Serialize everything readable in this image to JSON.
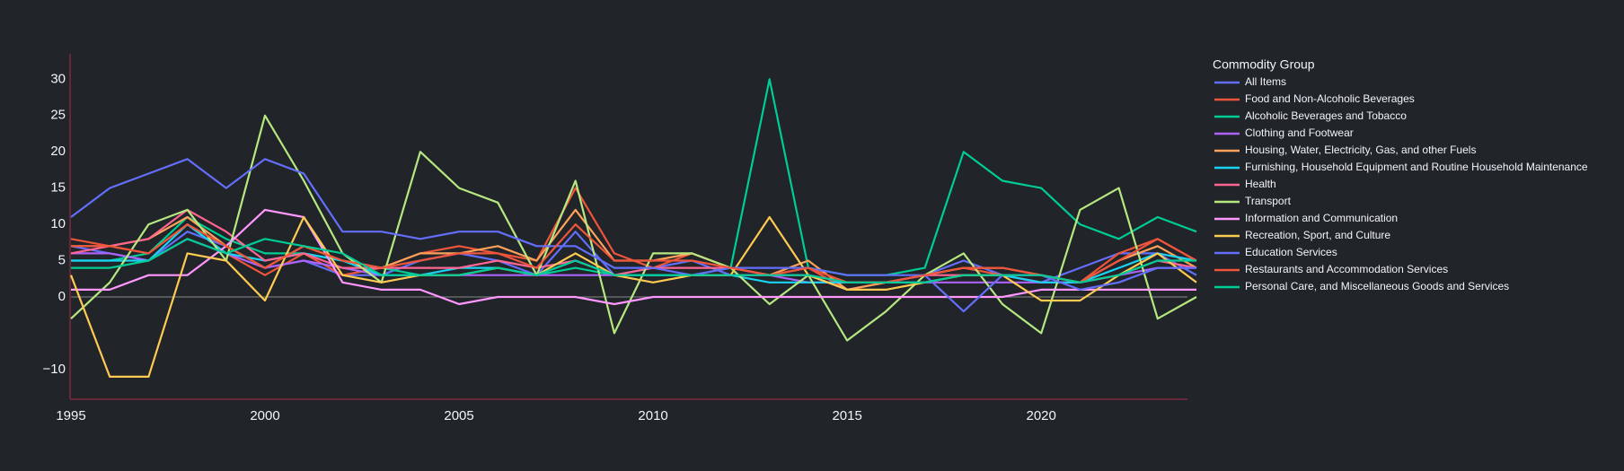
{
  "chart_data": {
    "type": "line",
    "legend_title": "Commodity Group",
    "x": [
      1995,
      1996,
      1997,
      1998,
      1999,
      2000,
      2001,
      2002,
      2003,
      2004,
      2005,
      2006,
      2007,
      2008,
      2009,
      2010,
      2011,
      2012,
      2013,
      2014,
      2015,
      2016,
      2017,
      2018,
      2019,
      2020,
      2021,
      2022,
      2023,
      2024
    ],
    "xlim": [
      1995,
      2024
    ],
    "xticks": [
      1995,
      2000,
      2005,
      2010,
      2015,
      2020
    ],
    "ylim": [
      -14.1,
      33.5
    ],
    "yticks": [
      {
        "value": -10,
        "label": "−10"
      },
      0,
      5,
      10,
      15,
      20,
      25,
      30
    ],
    "zero_line": true,
    "grid": false,
    "legend": "right",
    "series": [
      {
        "name": "All Items",
        "color": "#636efa",
        "values": [
          7,
          6,
          5,
          9,
          7,
          4,
          5,
          3,
          3,
          5,
          6,
          5,
          3,
          9,
          3,
          4,
          5,
          3,
          3,
          3,
          1,
          2,
          3,
          5,
          3,
          2,
          4,
          6,
          6,
          3
        ]
      },
      {
        "name": "Food and Non-Alcoholic Beverages",
        "color": "#EF553B",
        "values": [
          8,
          7,
          6,
          10,
          6,
          3,
          6,
          3,
          4,
          6,
          7,
          6,
          5,
          15,
          6,
          4,
          6,
          4,
          3,
          4,
          1,
          2,
          3,
          4,
          3,
          2,
          2,
          6,
          8,
          5
        ]
      },
      {
        "name": "Alcoholic Beverages and Tobacco",
        "color": "#00cc96",
        "values": [
          5,
          5,
          6,
          11,
          8,
          6,
          6,
          5,
          4,
          3,
          3,
          4,
          3,
          4,
          3,
          3,
          3,
          4,
          30,
          4,
          3,
          3,
          4,
          20,
          16,
          15,
          10,
          8,
          11,
          9
        ]
      },
      {
        "name": "Clothing and Footwear",
        "color": "#ab63fa",
        "values": [
          6,
          6,
          5,
          8,
          6,
          4,
          5,
          4,
          3,
          3,
          3,
          3,
          3,
          3,
          3,
          3,
          3,
          3,
          3,
          2,
          2,
          2,
          2,
          2,
          2,
          2,
          2,
          3,
          4,
          4
        ]
      },
      {
        "name": "Housing, Water, Electricity, Gas, and other Fuels",
        "color": "#FFA15A",
        "values": [
          7,
          7,
          8,
          11,
          7,
          4,
          7,
          5,
          4,
          6,
          6,
          7,
          5,
          12,
          5,
          5,
          6,
          4,
          3,
          5,
          1,
          2,
          3,
          4,
          4,
          3,
          2,
          5,
          7,
          4
        ]
      },
      {
        "name": "Furnishing, Household Equipment and Routine Household Maintenance",
        "color": "#19d3f3",
        "values": [
          5,
          5,
          5,
          10,
          6,
          5,
          6,
          5,
          3,
          3,
          4,
          4,
          3,
          5,
          3,
          3,
          3,
          3,
          2,
          2,
          2,
          2,
          2,
          3,
          3,
          2,
          2,
          4,
          6,
          5
        ]
      },
      {
        "name": "Health",
        "color": "#FF6692",
        "values": [
          6,
          7,
          8,
          12,
          9,
          5,
          6,
          4,
          4,
          4,
          4,
          5,
          4,
          5,
          3,
          4,
          4,
          4,
          3,
          3,
          2,
          2,
          3,
          3,
          3,
          3,
          2,
          3,
          5,
          4
        ]
      },
      {
        "name": "Transport",
        "color": "#B6E880",
        "values": [
          -3,
          2,
          10,
          12,
          5,
          25,
          16,
          6,
          2,
          20,
          15,
          13,
          3,
          16,
          -5,
          6,
          6,
          4,
          -1,
          3,
          -6,
          -2,
          3,
          6,
          -1,
          -5,
          12,
          15,
          -3,
          0
        ]
      },
      {
        "name": "Information and Communication",
        "color": "#FF97FF",
        "values": [
          1,
          1,
          3,
          3,
          7,
          12,
          11,
          2,
          1,
          1,
          -1,
          0,
          0,
          0,
          -1,
          0,
          0,
          0,
          0,
          0,
          0,
          0,
          0,
          0,
          0,
          1,
          1,
          1,
          1,
          1
        ]
      },
      {
        "name": "Recreation, Sport, and Culture",
        "color": "#FECB52",
        "values": [
          3,
          -11,
          -11,
          6,
          5,
          -0.5,
          11,
          3,
          2,
          3,
          3,
          4,
          3,
          6,
          3,
          2,
          3,
          3,
          11,
          3,
          1,
          1,
          2,
          3,
          3,
          -0.5,
          -0.5,
          3,
          6,
          2
        ]
      },
      {
        "name": "Education Services",
        "color": "#636efa",
        "values": [
          11,
          15,
          17,
          19,
          15,
          19,
          17,
          9,
          9,
          8,
          9,
          9,
          7,
          7,
          4,
          4,
          3,
          4,
          4,
          4,
          3,
          3,
          3,
          -2,
          3,
          3,
          1,
          2,
          4,
          4
        ]
      },
      {
        "name": "Restaurants and Accommodation Services",
        "color": "#EF553B",
        "values": [
          7,
          7,
          6,
          10,
          7,
          4,
          7,
          5,
          4,
          5,
          6,
          6,
          4,
          10,
          5,
          5,
          5,
          4,
          3,
          4,
          2,
          2,
          3,
          4,
          4,
          3,
          2,
          5,
          8,
          5
        ]
      },
      {
        "name": "Personal Care, and Miscellaneous Goods and Services",
        "color": "#00cc96",
        "values": [
          4,
          4,
          5,
          8,
          6,
          8,
          7,
          6,
          3,
          3,
          3,
          4,
          3,
          5,
          3,
          3,
          3,
          3,
          3,
          3,
          2,
          2,
          2,
          3,
          3,
          3,
          2,
          3,
          5,
          5
        ]
      }
    ]
  }
}
